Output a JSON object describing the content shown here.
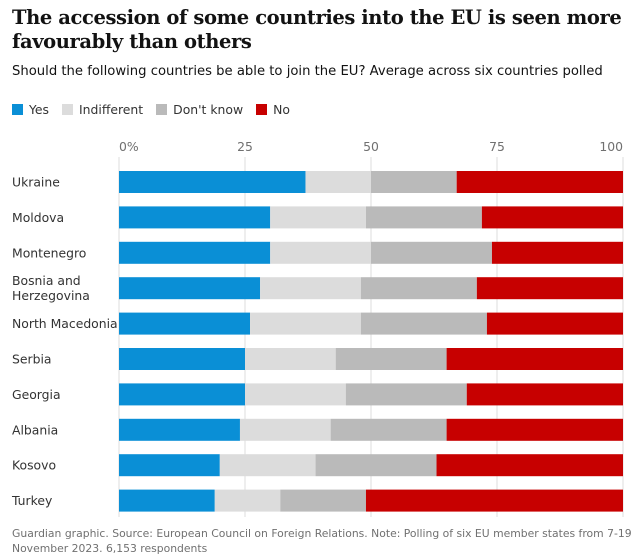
{
  "title": "The accession of some countries into the EU is seen more favourably than others",
  "subtitle": "Should the following countries be able to join the EU? Average across six countries polled",
  "source": "Guardian graphic. Source: European Council on Foreign Relations. Note: Polling of six EU member states from 7-19 November 2023. 6,153 respondents",
  "chart_data": {
    "type": "bar",
    "orientation": "horizontal",
    "stacked": true,
    "title": "The accession of some countries into the EU is seen more favourably than others",
    "subtitle": "Should the following countries be able to join the EU? Average across six countries polled",
    "xlim": [
      0,
      100
    ],
    "ticks": [
      0,
      25,
      50,
      75,
      100
    ],
    "tick_labels": [
      "0%",
      "25",
      "50",
      "75",
      "100"
    ],
    "grid": true,
    "legend_position": "top-left",
    "categories": [
      [
        "Ukraine"
      ],
      [
        "Moldova"
      ],
      [
        "Montenegro"
      ],
      [
        "Bosnia and",
        "Herzegovina"
      ],
      [
        "North Macedonia"
      ],
      [
        "Serbia"
      ],
      [
        "Georgia"
      ],
      [
        "Albania"
      ],
      [
        "Kosovo"
      ],
      [
        "Turkey"
      ]
    ],
    "series": [
      {
        "name": "Yes",
        "color": "#0a8fd6",
        "values": [
          37,
          30,
          30,
          28,
          26,
          25,
          25,
          24,
          20,
          19
        ]
      },
      {
        "name": "Indifferent",
        "color": "#dcdcdc",
        "values": [
          13,
          19,
          20,
          20,
          22,
          18,
          20,
          18,
          19,
          13
        ]
      },
      {
        "name": "Don't know",
        "color": "#bababa",
        "values": [
          17,
          23,
          24,
          23,
          25,
          22,
          24,
          23,
          24,
          17
        ]
      },
      {
        "name": "No",
        "color": "#c70000",
        "values": [
          33,
          28,
          26,
          29,
          27,
          35,
          31,
          35,
          37,
          51
        ]
      }
    ]
  }
}
